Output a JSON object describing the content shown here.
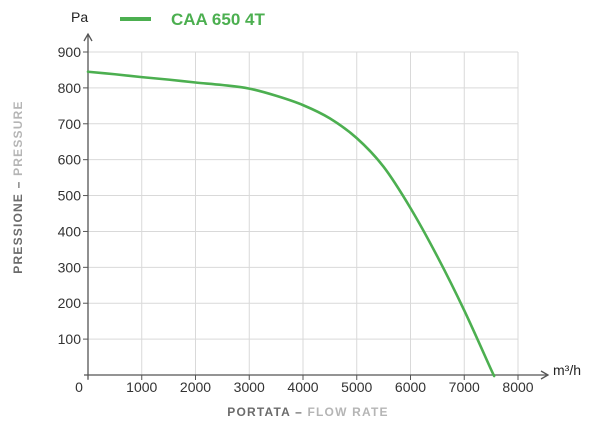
{
  "chart_data": {
    "type": "line",
    "title": "",
    "x_unit": "m³/h",
    "y_unit": "Pa",
    "xlabel_main": "PORTATA",
    "xlabel_sep": " – ",
    "xlabel_sub": "FLOW RATE",
    "ylabel_main": "PRESSIONE",
    "ylabel_sep": " – ",
    "ylabel_sub": "PRESSURE",
    "xlim": [
      0,
      8000
    ],
    "ylim": [
      0,
      900
    ],
    "x_ticks": [
      "0",
      "1000",
      "2000",
      "3000",
      "4000",
      "5000",
      "6000",
      "7000",
      "8000"
    ],
    "y_ticks": [
      "100",
      "200",
      "300",
      "400",
      "500",
      "600",
      "700",
      "800",
      "900"
    ],
    "grid": true,
    "legend_position": "top-left",
    "colors": {
      "series": "#4caf50",
      "grid": "#d9d9d9",
      "axis": "#555555",
      "axis_title_main": "#6b6b6b",
      "axis_title_sub": "#b5b5b5"
    },
    "series": [
      {
        "name": "CAA 650 4T",
        "x": [
          0,
          500,
          1000,
          1500,
          2000,
          2500,
          3000,
          3500,
          4000,
          4500,
          5000,
          5500,
          6000,
          6500,
          7000,
          7500,
          7550
        ],
        "y": [
          845,
          838,
          830,
          823,
          815,
          808,
          798,
          778,
          752,
          715,
          660,
          580,
          465,
          330,
          180,
          15,
          0
        ]
      }
    ]
  }
}
